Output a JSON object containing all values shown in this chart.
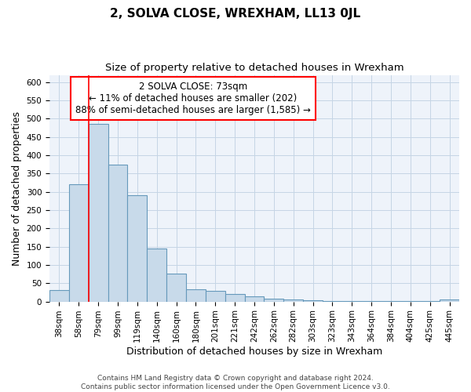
{
  "title": "2, SOLVA CLOSE, WREXHAM, LL13 0JL",
  "subtitle": "Size of property relative to detached houses in Wrexham",
  "xlabel": "Distribution of detached houses by size in Wrexham",
  "ylabel": "Number of detached properties",
  "footer_line1": "Contains HM Land Registry data © Crown copyright and database right 2024.",
  "footer_line2": "Contains public sector information licensed under the Open Government Licence v3.0.",
  "categories": [
    "38sqm",
    "58sqm",
    "79sqm",
    "99sqm",
    "119sqm",
    "140sqm",
    "160sqm",
    "180sqm",
    "201sqm",
    "221sqm",
    "242sqm",
    "262sqm",
    "282sqm",
    "303sqm",
    "323sqm",
    "343sqm",
    "364sqm",
    "384sqm",
    "404sqm",
    "425sqm",
    "445sqm"
  ],
  "values": [
    31,
    320,
    485,
    375,
    290,
    144,
    76,
    33,
    30,
    20,
    15,
    8,
    5,
    3,
    2,
    2,
    2,
    2,
    2,
    2,
    5
  ],
  "bar_color": "#c8daea",
  "bar_edge_color": "#6699bb",
  "grid_color": "#c5d5e5",
  "background_color": "#eef3fa",
  "ylim": [
    0,
    620
  ],
  "yticks": [
    0,
    50,
    100,
    150,
    200,
    250,
    300,
    350,
    400,
    450,
    500,
    550,
    600
  ],
  "property_label": "2 SOLVA CLOSE: 73sqm",
  "annotation_line1": "← 11% of detached houses are smaller (202)",
  "annotation_line2": "88% of semi-detached houses are larger (1,585) →",
  "vline_x_index": 2.0,
  "title_fontsize": 11,
  "subtitle_fontsize": 9.5,
  "axis_label_fontsize": 9,
  "tick_fontsize": 7.5,
  "annotation_fontsize": 8.5,
  "footer_fontsize": 6.5
}
